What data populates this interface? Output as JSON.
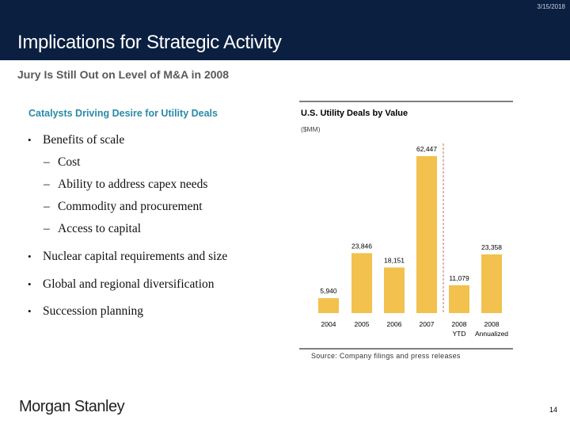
{
  "header": {
    "date": "3/15/2018",
    "title": "Implications for Strategic Activity"
  },
  "subtitle": "Jury Is Still Out on Level of M&A in 2008",
  "left": {
    "heading": "Catalysts Driving Desire for Utility Deals",
    "bullets": [
      {
        "level": 1,
        "text": "Benefits of scale"
      },
      {
        "level": 2,
        "text": "Cost"
      },
      {
        "level": 2,
        "text": "Ability to address capex needs"
      },
      {
        "level": 2,
        "text": "Commodity and procurement"
      },
      {
        "level": 2,
        "text": "Access to capital"
      },
      {
        "level": 1,
        "text": "Nuclear capital requirements and size"
      },
      {
        "level": 1,
        "text": "Global and regional diversification"
      },
      {
        "level": 1,
        "text": "Succession planning"
      }
    ]
  },
  "chart_data": {
    "type": "bar",
    "title": "U.S. Utility Deals by Value",
    "subtitle": "($MM)",
    "categories": [
      "2004",
      "2005",
      "2006",
      "2007",
      "2008 YTD",
      "2008 Annualized"
    ],
    "category_lines": [
      [
        "2004"
      ],
      [
        "2005"
      ],
      [
        "2006"
      ],
      [
        "2007"
      ],
      [
        "2008",
        "YTD"
      ],
      [
        "2008",
        "Annualized"
      ]
    ],
    "values": [
      5940,
      23846,
      18151,
      62447,
      11079,
      23358
    ],
    "labels": [
      "5,940",
      "23,846",
      "18,151",
      "62,447",
      "11,079",
      "23,358"
    ],
    "bar_color": "#f2c14e",
    "divider": "dashed line between 2007 and 2008 YTD",
    "grid": false
  },
  "source": "Source: Company filings and press releases",
  "footer": {
    "logo": "Morgan Stanley",
    "page": "14"
  }
}
